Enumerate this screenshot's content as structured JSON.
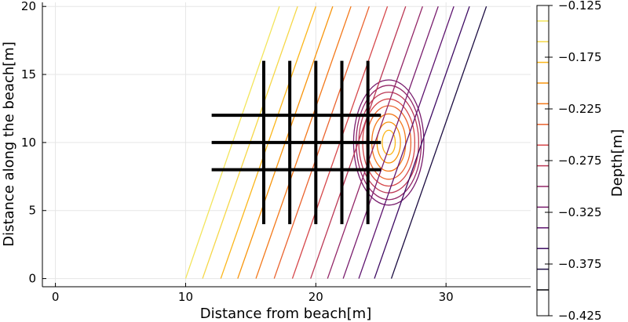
{
  "chart_data": {
    "type": "contour",
    "title": "",
    "xlabel": "Distance from beach[m]",
    "ylabel": "Distance along the beach[m]",
    "colorbar_label": "Depth[m]",
    "xlim": [
      -1,
      36.5
    ],
    "ylim": [
      -0.6,
      20.3
    ],
    "xticks": [
      0,
      10,
      20,
      30
    ],
    "yticks": [
      0,
      5,
      10,
      15,
      20
    ],
    "grid": true,
    "colorbar": {
      "range": [
        -0.425,
        -0.125
      ],
      "ticks": [
        -0.125,
        -0.175,
        -0.225,
        -0.275,
        -0.325,
        -0.375,
        -0.425
      ],
      "tick_labels": [
        "−0.125",
        "−0.175",
        "−0.225",
        "−0.275",
        "−0.325",
        "−0.375",
        "−0.425"
      ],
      "levels": [
        -0.4,
        -0.38,
        -0.36,
        -0.34,
        -0.32,
        -0.3,
        -0.28,
        -0.26,
        -0.24,
        -0.22,
        -0.2,
        -0.18,
        -0.16,
        -0.14
      ],
      "colors": [
        "#000004",
        "#1b0c41",
        "#3d0a62",
        "#5d126e",
        "#781c6d",
        "#932667",
        "#bb3754",
        "#d6474a",
        "#ea632e",
        "#f37819",
        "#f8940a",
        "#fbb61a",
        "#f6d746",
        "#f3e55b"
      ]
    },
    "contours": [
      {
        "level": -0.14,
        "x_at_y0": 10.0,
        "x_at_y20": 17.2
      },
      {
        "level": -0.16,
        "x_at_y0": 11.3,
        "x_at_y20": 18.6
      },
      {
        "level": -0.18,
        "x_at_y0": 12.7,
        "x_at_y20": 20.0
      },
      {
        "level": -0.2,
        "x_at_y0": 14.0,
        "x_at_y20": 21.3
      },
      {
        "level": -0.22,
        "x_at_y0": 15.4,
        "x_at_y20": 22.7
      },
      {
        "level": -0.24,
        "x_at_y0": 16.8,
        "x_at_y20": 24.1
      },
      {
        "level": -0.26,
        "x_at_y0": 18.2,
        "x_at_y20": 25.5
      },
      {
        "level": -0.28,
        "x_at_y0": 19.6,
        "x_at_y20": 26.9
      },
      {
        "level": -0.3,
        "x_at_y0": 20.9,
        "x_at_y20": 28.2
      },
      {
        "level": -0.32,
        "x_at_y0": 22.1,
        "x_at_y20": 29.4
      },
      {
        "level": -0.34,
        "x_at_y0": 23.3,
        "x_at_y20": 30.6
      },
      {
        "level": -0.36,
        "x_at_y0": 24.5,
        "x_at_y20": 31.8
      },
      {
        "level": -0.38,
        "x_at_y0": 25.8,
        "x_at_y20": 33.1
      }
    ],
    "bump": {
      "center": [
        25.6,
        10.0
      ],
      "rings": [
        {
          "rx": 0.5,
          "ry": 0.9,
          "color": "#fbb61a"
        },
        {
          "rx": 0.9,
          "ry": 1.5,
          "color": "#f8940a"
        },
        {
          "rx": 1.3,
          "ry": 2.1,
          "color": "#f37819"
        },
        {
          "rx": 1.7,
          "ry": 2.7,
          "color": "#ea632e"
        },
        {
          "rx": 2.0,
          "ry": 3.2,
          "color": "#d6474a"
        },
        {
          "rx": 2.3,
          "ry": 3.7,
          "color": "#bb3754"
        },
        {
          "rx": 2.5,
          "ry": 4.2,
          "color": "#932667"
        },
        {
          "rx": 2.7,
          "ry": 4.6,
          "color": "#781c6d"
        }
      ]
    },
    "probe_lines": {
      "horizontal": [
        {
          "y": 12,
          "x0": 12,
          "x1": 25
        },
        {
          "y": 10,
          "x0": 12,
          "x1": 25
        },
        {
          "y": 8,
          "x0": 12,
          "x1": 25
        }
      ],
      "vertical": [
        {
          "x": 16,
          "y0": 4,
          "y1": 16
        },
        {
          "x": 18,
          "y0": 4,
          "y1": 16
        },
        {
          "x": 20,
          "y0": 4,
          "y1": 16
        },
        {
          "x": 22,
          "y0": 4,
          "y1": 16
        },
        {
          "x": 24,
          "y0": 4,
          "y1": 16
        }
      ]
    }
  }
}
